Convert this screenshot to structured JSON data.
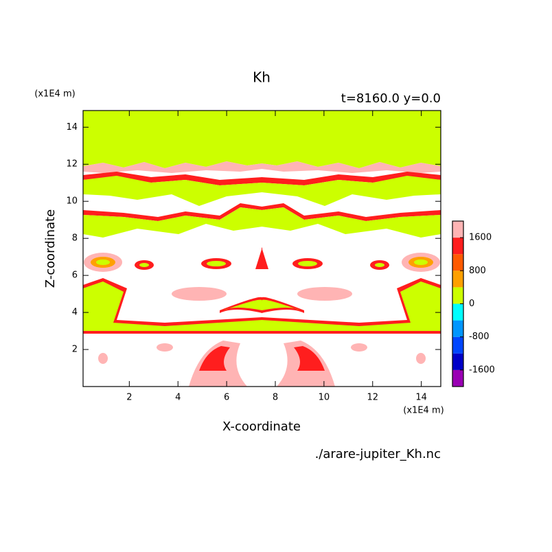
{
  "chart_data": {
    "type": "contour",
    "title": "Kh",
    "subtitle": "t=8160.0 y=0.0",
    "x_label": "X-coordinate",
    "y_label": "Z-coordinate",
    "x_unit": "(x1E4 m)",
    "y_unit": "(x1E4 m)",
    "source": "./arare-jupiter_Kh.nc",
    "xlim": [
      0.1,
      14.8
    ],
    "ylim": [
      0,
      14.9
    ],
    "xticks": [
      2,
      4,
      6,
      8,
      10,
      12,
      14
    ],
    "yticks": [
      2,
      4,
      6,
      8,
      10,
      12,
      14
    ],
    "colorbar": {
      "levels": [
        -2000,
        -1600,
        -1200,
        -800,
        -400,
        0,
        400,
        800,
        1200,
        1600,
        2000
      ],
      "colors": [
        "#9a00b4",
        "#0000c8",
        "#0046ff",
        "#0096ff",
        "#00ffff",
        "#ccff00",
        "#ffa000",
        "#ff5a00",
        "#ff1e1e",
        "#ffb4b4"
      ],
      "ticks": [
        -1600,
        -800,
        0,
        800,
        1600
      ]
    }
  }
}
